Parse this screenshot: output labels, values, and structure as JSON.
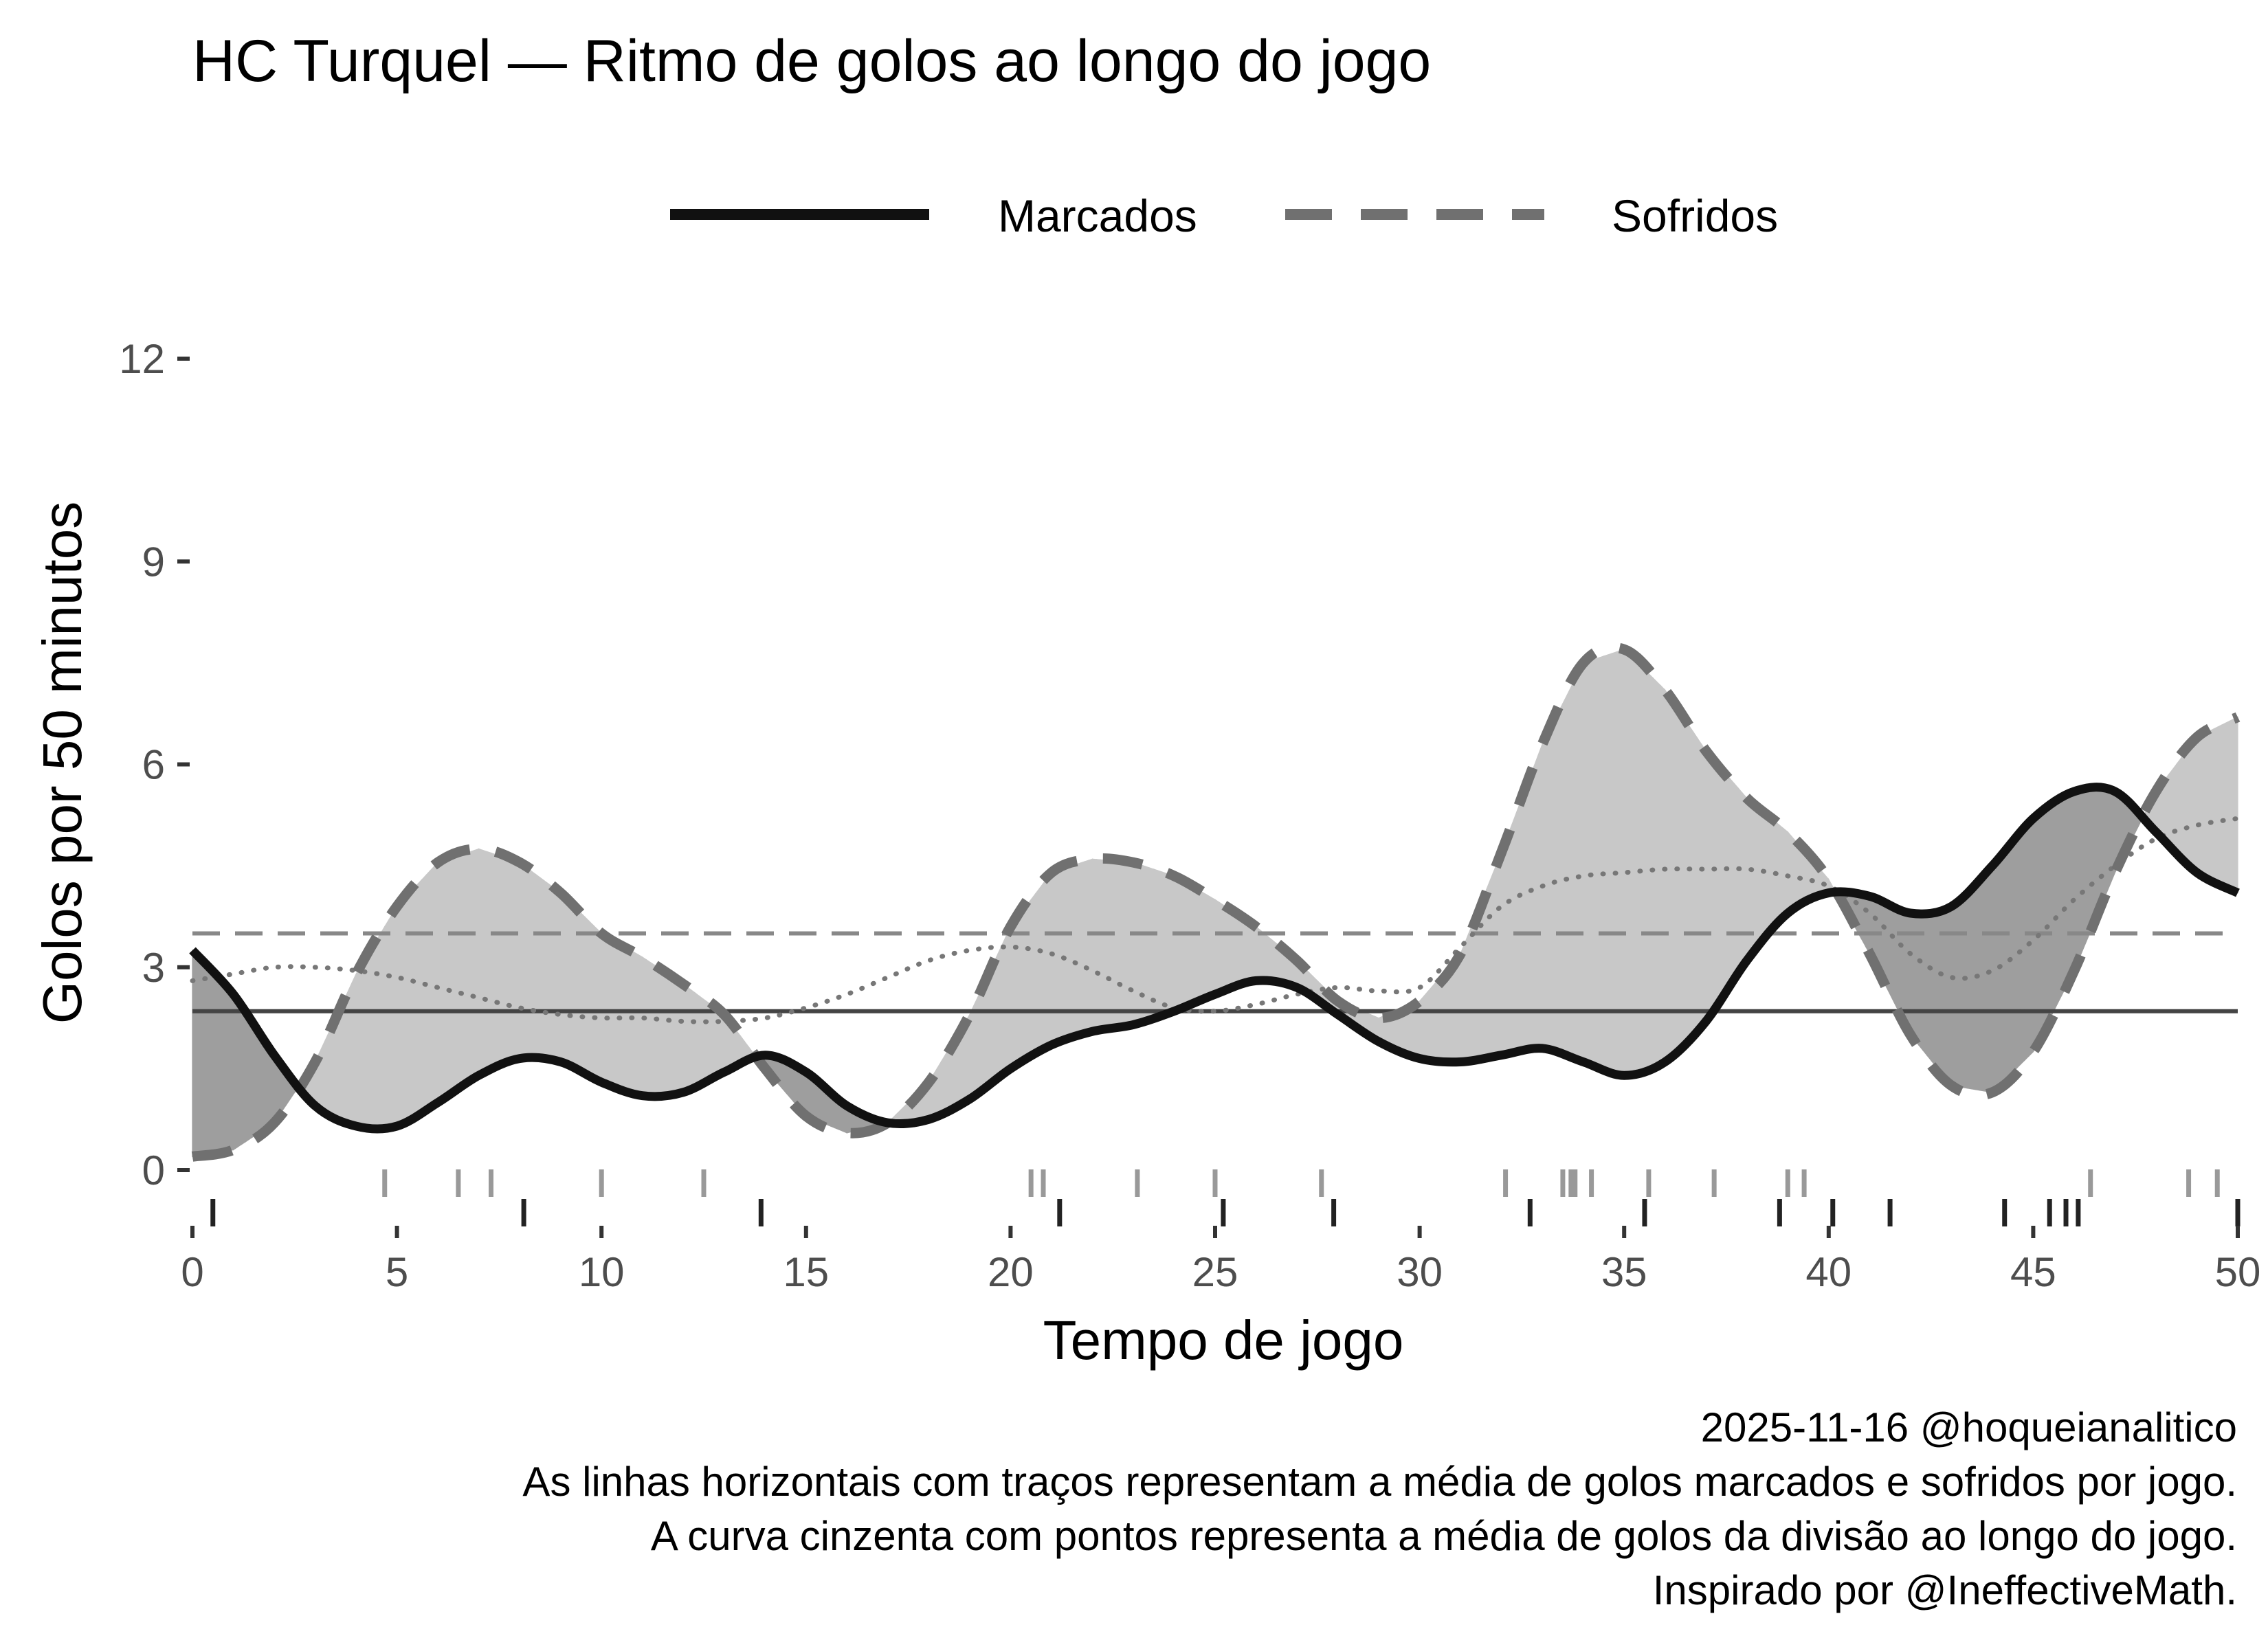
{
  "chart_data": {
    "type": "line",
    "title": "HC Turquel — Ritmo de golos ao longo do jogo",
    "xlabel": "Tempo de jogo",
    "ylabel": "Golos por 50 minutos",
    "xlim": [
      0,
      50
    ],
    "ylim": [
      0,
      12
    ],
    "x_ticks": [
      0,
      5,
      10,
      15,
      20,
      25,
      30,
      35,
      40,
      45,
      50
    ],
    "y_ticks": [
      0,
      3,
      6,
      9,
      12
    ],
    "legend": {
      "placement": "top",
      "entries": [
        "Marcados",
        "Sofridos"
      ]
    },
    "x": [
      0,
      1,
      2,
      3,
      4,
      5,
      6,
      7,
      8,
      9,
      10,
      11,
      12,
      13,
      14,
      15,
      16,
      17,
      18,
      19,
      20,
      21,
      22,
      23,
      24,
      25,
      26,
      27,
      28,
      29,
      30,
      31,
      32,
      33,
      34,
      35,
      36,
      37,
      38,
      39,
      40,
      41,
      42,
      43,
      44,
      45,
      46,
      47,
      48,
      49,
      50
    ],
    "series": [
      {
        "name": "Marcados",
        "style": "solid",
        "color": "#111111",
        "values": [
          3.25,
          2.6,
          1.7,
          0.95,
          0.65,
          0.65,
          1.0,
          1.4,
          1.65,
          1.6,
          1.3,
          1.1,
          1.15,
          1.45,
          1.7,
          1.45,
          0.95,
          0.7,
          0.75,
          1.05,
          1.5,
          1.85,
          2.05,
          2.15,
          2.35,
          2.6,
          2.8,
          2.7,
          2.3,
          1.9,
          1.65,
          1.6,
          1.7,
          1.8,
          1.6,
          1.4,
          1.6,
          2.2,
          3.1,
          3.8,
          4.1,
          4.05,
          3.8,
          3.9,
          4.5,
          5.2,
          5.6,
          5.6,
          5.0,
          4.4,
          4.1
        ]
      },
      {
        "name": "Sofridos",
        "style": "dashed",
        "color": "#707070",
        "values": [
          0.2,
          0.3,
          0.7,
          1.6,
          2.9,
          3.9,
          4.55,
          4.75,
          4.55,
          4.1,
          3.5,
          3.15,
          2.75,
          2.3,
          1.5,
          0.8,
          0.55,
          0.7,
          1.3,
          2.3,
          3.6,
          4.4,
          4.6,
          4.55,
          4.35,
          4.0,
          3.6,
          3.1,
          2.5,
          2.25,
          2.5,
          3.2,
          4.7,
          6.3,
          7.5,
          7.7,
          7.1,
          6.2,
          5.5,
          5.0,
          4.3,
          3.2,
          2.0,
          1.25,
          1.15,
          1.75,
          2.95,
          4.4,
          5.6,
          6.4,
          6.7
        ]
      },
      {
        "name": "Média da divisão",
        "style": "dotted",
        "color": "#777777",
        "values": [
          2.8,
          2.9,
          3.0,
          3.0,
          2.95,
          2.85,
          2.7,
          2.55,
          2.4,
          2.3,
          2.25,
          2.25,
          2.2,
          2.2,
          2.25,
          2.4,
          2.6,
          2.85,
          3.1,
          3.25,
          3.3,
          3.2,
          2.95,
          2.65,
          2.4,
          2.35,
          2.45,
          2.6,
          2.7,
          2.65,
          2.7,
          3.3,
          3.9,
          4.2,
          4.35,
          4.4,
          4.45,
          4.45,
          4.45,
          4.35,
          4.2,
          3.8,
          3.2,
          2.85,
          2.95,
          3.4,
          4.0,
          4.5,
          4.9,
          5.1,
          5.2
        ]
      }
    ],
    "reference_lines": [
      {
        "name": "Média marcados",
        "value": 2.35,
        "style": "solid",
        "color": "#444444"
      },
      {
        "name": "Média sofridos",
        "value": 3.5,
        "style": "dashed",
        "color": "#888888"
      }
    ],
    "rug_marcados": [
      0.5,
      8.1,
      13.9,
      21.2,
      25.2,
      27.9,
      32.7,
      35.5,
      38.8,
      40.1,
      41.5,
      44.3,
      45.4,
      45.8,
      46.1,
      50.0
    ],
    "rug_sofridos": [
      4.7,
      6.5,
      7.3,
      10.0,
      12.5,
      20.5,
      20.8,
      23.1,
      25.0,
      27.6,
      32.1,
      33.5,
      33.7,
      33.8,
      34.2,
      35.6,
      37.2,
      39.0,
      39.4,
      46.4,
      48.8,
      49.5
    ]
  },
  "legend": {
    "marcados": "Marcados",
    "sofridos": "Sofridos"
  },
  "caption": {
    "line1": "2025-11-16 @hoqueianalitico",
    "line2": "As linhas horizontais com traços representam a média de golos marcados e sofridos por jogo.",
    "line3": "A curva cinzenta com pontos representa a média de golos da divisão ao longo do jogo.",
    "line4": "Inspirado por @IneffectiveMath."
  },
  "colors": {
    "above_fill": "#c8c8c8",
    "below_fill": "#9e9e9e",
    "rug_marcados": "#222222",
    "rug_sofridos": "#999999"
  }
}
